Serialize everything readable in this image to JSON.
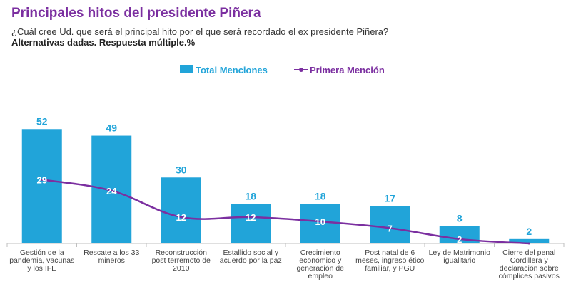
{
  "header": {
    "title": "Principales hitos del presidente Piñera",
    "subtitle": "¿Cuál cree Ud. que será el principal hito por el que será recordado el ex presidente Piñera?",
    "subtitle_bold": "Alternativas dadas. Respuesta múltiple.%"
  },
  "colors": {
    "title": "#7b2fa0",
    "bar": "#21a4d9",
    "line": "#7b2fa0",
    "bar_label": "#21a4d9",
    "line_label": "#ffffff"
  },
  "chart_data": {
    "type": "bar",
    "categories": [
      [
        "Gestión de la",
        "pandemia, vacunas",
        "y los IFE"
      ],
      [
        "Rescate a los 33",
        "mineros"
      ],
      [
        "Reconstrucción",
        "post terremoto de",
        "2010"
      ],
      [
        "Estallido social y",
        "acuerdo por la paz"
      ],
      [
        "Crecimiento",
        "económico y",
        "generación de",
        "empleo"
      ],
      [
        "Post natal de 6",
        "meses, ingreso ético",
        "familiar, y PGU"
      ],
      [
        "Ley de Matrimonio",
        "igualitario"
      ],
      [
        "Cierre del penal",
        "Cordillera y",
        "declaración sobre",
        "cómplices pasivos"
      ]
    ],
    "series": [
      {
        "name": "Total Menciones",
        "type": "bar",
        "values": [
          52,
          49,
          30,
          18,
          18,
          17,
          8,
          2
        ]
      },
      {
        "name": "Primera Mención",
        "type": "line",
        "values": [
          29,
          24,
          12,
          12,
          10,
          7,
          2,
          0
        ]
      }
    ],
    "legend_position": "top-center",
    "grid": false,
    "ylim": [
      0,
      55
    ]
  }
}
